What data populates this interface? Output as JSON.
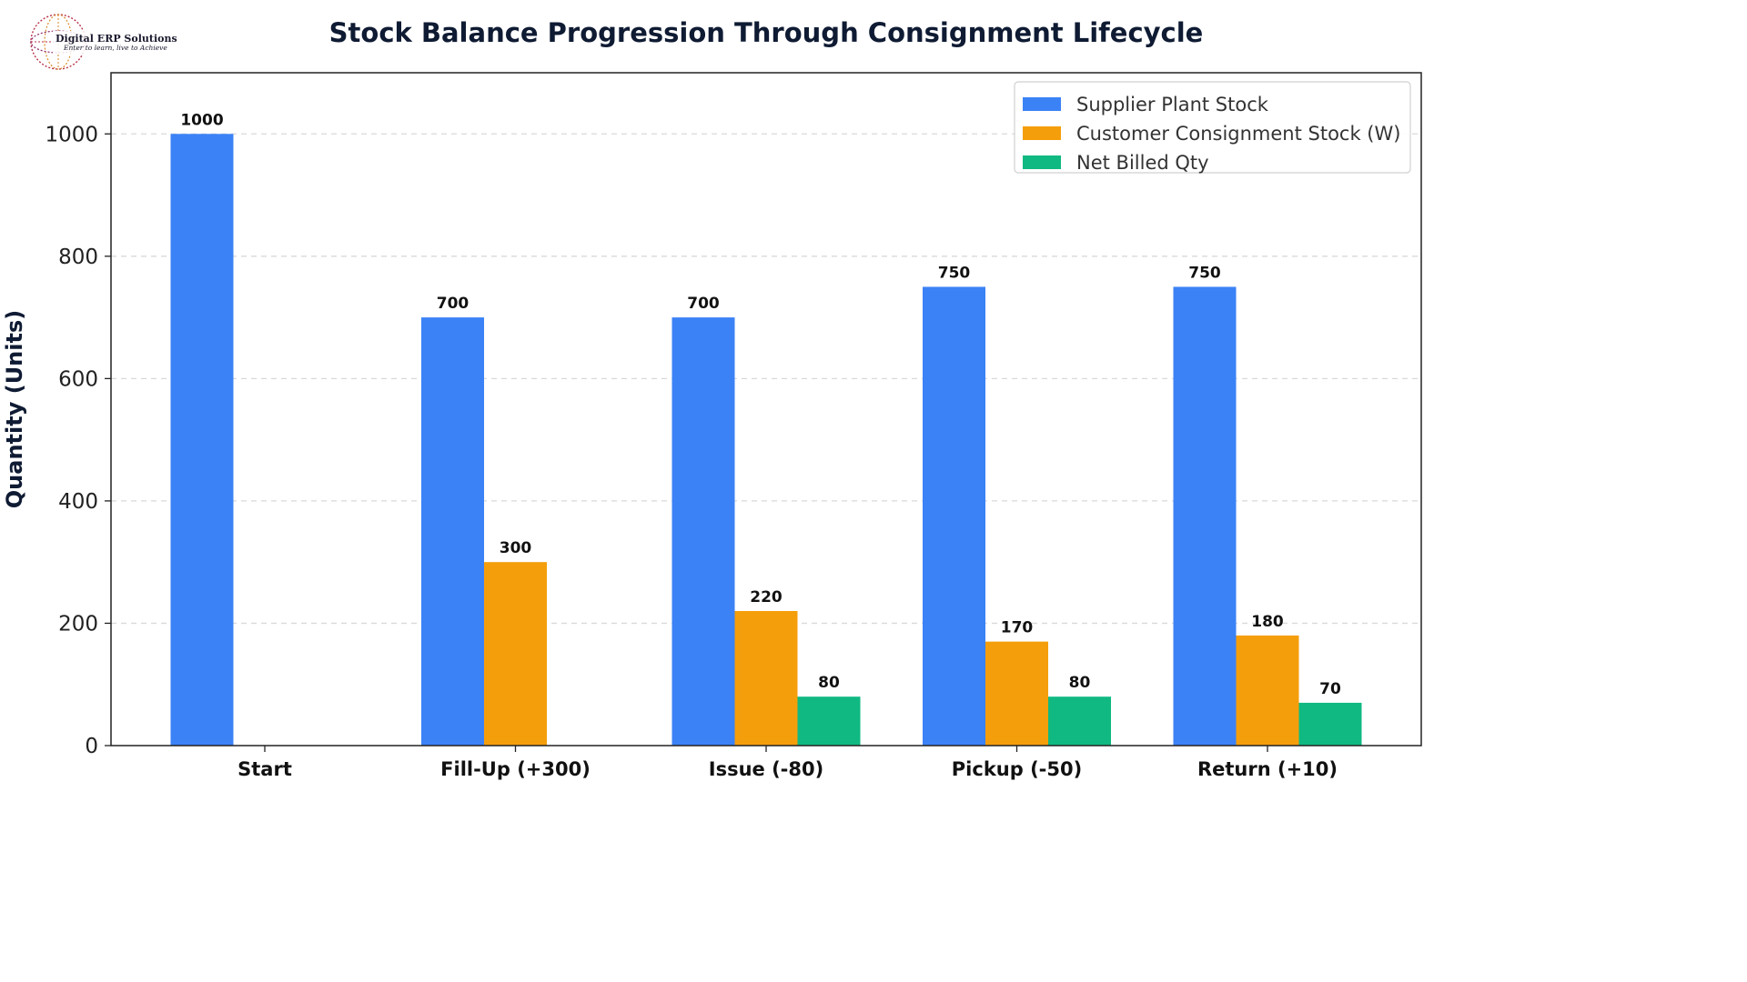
{
  "logo": {
    "name": "Digital ERP Solutions",
    "tagline": "Enter to learn, live to Achieve"
  },
  "chart_data": {
    "type": "bar",
    "title": "Stock Balance Progression Through Consignment Lifecycle",
    "xlabel": "",
    "ylabel": "Quantity (Units)",
    "ylim": [
      0,
      1100
    ],
    "yticks": [
      0,
      200,
      400,
      600,
      800,
      1000
    ],
    "grid": "horizontal-dashed",
    "legend_position": "top-right",
    "categories": [
      "Start",
      "Fill-Up (+300)",
      "Issue (-80)",
      "Pickup (-50)",
      "Return (+10)"
    ],
    "series": [
      {
        "name": "Supplier Plant Stock",
        "color": "#3b82f6",
        "values": [
          1000,
          700,
          700,
          750,
          750
        ]
      },
      {
        "name": "Customer Consignment Stock (W)",
        "color": "#f59e0b",
        "values": [
          0,
          300,
          220,
          170,
          180
        ]
      },
      {
        "name": "Net Billed Qty",
        "color": "#10b981",
        "values": [
          0,
          0,
          80,
          80,
          70
        ]
      }
    ]
  }
}
